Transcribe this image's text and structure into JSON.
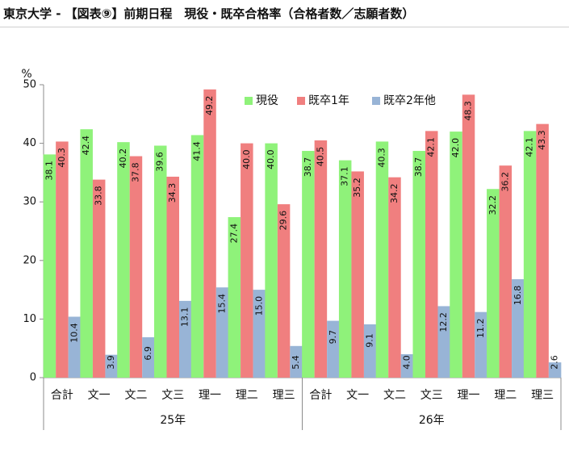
{
  "header": {
    "title": "東京大学 - 【図表⑨】前期日程　現役・既卒合格率（合格者数／志願者数）"
  },
  "colors": {
    "現役": "#8ff27a",
    "既卒1年": "#f07f7f",
    "既卒2年他": "#98b4d6",
    "axis": "#8c8c8c",
    "text": "#111111"
  },
  "chart_data": {
    "type": "bar",
    "title": "",
    "ylabel": "%",
    "ylim": [
      0,
      50
    ],
    "yticks": [
      0,
      10,
      20,
      30,
      40,
      50
    ],
    "grid": false,
    "legend_position": "top-right",
    "groups": [
      {
        "label": "25年",
        "categories": [
          "合計",
          "文一",
          "文二",
          "文三",
          "理一",
          "理二",
          "理三"
        ]
      },
      {
        "label": "26年",
        "categories": [
          "合計",
          "文一",
          "文二",
          "文三",
          "理一",
          "理二",
          "理三"
        ]
      }
    ],
    "series": [
      {
        "name": "現役",
        "values": [
          38.1,
          42.4,
          40.2,
          39.6,
          41.4,
          27.4,
          40.0,
          38.7,
          37.1,
          40.3,
          38.7,
          42.0,
          32.2,
          42.1
        ],
        "labels": [
          "38.1",
          "42.4",
          "40.2",
          "39.6",
          "41.4",
          "27.4",
          "40.0",
          "38.7",
          "37.1",
          "40.3",
          "38.7",
          "42.0",
          "32.2",
          "42.1"
        ]
      },
      {
        "name": "既卒1年",
        "values": [
          40.3,
          33.8,
          37.8,
          34.3,
          49.2,
          40.0,
          29.6,
          40.5,
          35.2,
          34.2,
          42.1,
          48.3,
          36.2,
          43.3
        ],
        "labels": [
          "40.3",
          "33.8",
          "37.8",
          "34.3",
          "49.2",
          "40.0",
          "29.6",
          "40.5",
          "35.2",
          "34.2",
          "42.1",
          "48.3",
          "36.2",
          "43.3"
        ]
      },
      {
        "name": "既卒2年他",
        "values": [
          10.4,
          3.9,
          6.9,
          13.1,
          15.4,
          15.0,
          5.4,
          9.7,
          9.1,
          4.0,
          12.2,
          11.2,
          16.8,
          2.6
        ],
        "labels": [
          "10.4",
          "3.9",
          "6.9",
          "13.1",
          "15.4",
          "15.0",
          "5.4",
          "9.7",
          "9.1",
          "4.0",
          "12.2",
          "11.2",
          "16.8",
          "2.6"
        ]
      }
    ]
  }
}
